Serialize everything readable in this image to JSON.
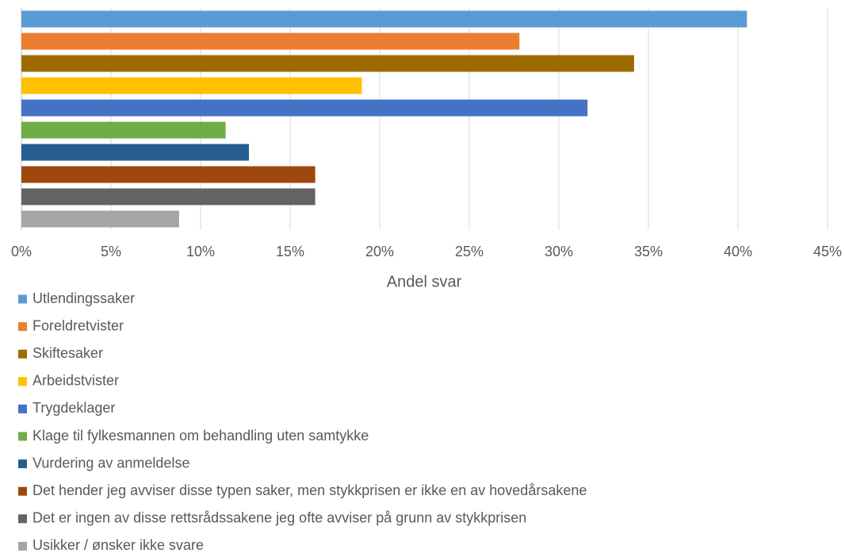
{
  "chart_data": {
    "type": "bar",
    "orientation": "horizontal",
    "xlabel": "Andel svar",
    "xlim": [
      0,
      45
    ],
    "xticks": [
      {
        "value": 0,
        "label": "0%"
      },
      {
        "value": 5,
        "label": "5%"
      },
      {
        "value": 10,
        "label": "10%"
      },
      {
        "value": 15,
        "label": "15%"
      },
      {
        "value": 20,
        "label": "20%"
      },
      {
        "value": 25,
        "label": "25%"
      },
      {
        "value": 30,
        "label": "30%"
      },
      {
        "value": 35,
        "label": "35%"
      },
      {
        "value": 40,
        "label": "40%"
      },
      {
        "value": 45,
        "label": "45%"
      }
    ],
    "grid": true,
    "legend": "bottom",
    "series": [
      {
        "name": "Utlendingssaker",
        "color": "#5b9bd5",
        "values": [
          40.5
        ]
      },
      {
        "name": "Foreldretvister",
        "color": "#ed7d31",
        "values": [
          27.8
        ]
      },
      {
        "name": "Skiftesaker",
        "color": "#9e6b00",
        "values": [
          34.2
        ]
      },
      {
        "name": "Arbeidstvister",
        "color": "#ffc000",
        "values": [
          19.0
        ]
      },
      {
        "name": "Trygdeklager",
        "color": "#4472c4",
        "values": [
          31.6
        ]
      },
      {
        "name": "Klage til fylkesmannen om behandling uten samtykke",
        "color": "#70ad47",
        "values": [
          11.4
        ]
      },
      {
        "name": "Vurdering av anmeldelse",
        "color": "#255e91",
        "values": [
          12.7
        ]
      },
      {
        "name": "Det hender jeg avviser disse typen saker, men stykkprisen er ikke en av hovedårsakene",
        "color": "#9e480e",
        "values": [
          16.4
        ]
      },
      {
        "name": "Det er ingen av disse rettsrådssakene jeg ofte avviser på grunn av stykkprisen",
        "color": "#636363",
        "values": [
          16.4
        ]
      },
      {
        "name": "Usikker / ønsker ikke svare",
        "color": "#a5a5a5",
        "values": [
          8.8
        ]
      }
    ]
  }
}
